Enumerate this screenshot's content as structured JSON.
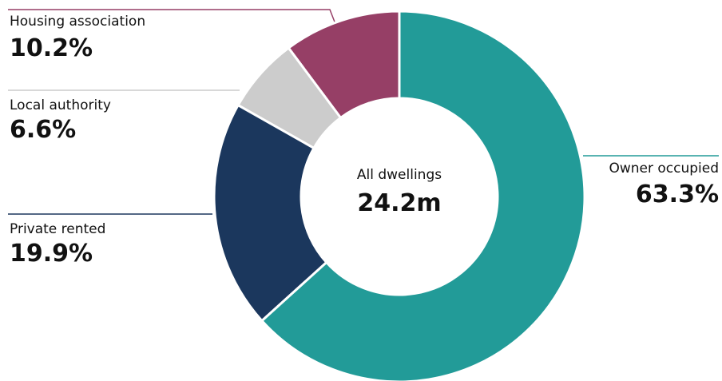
{
  "chart_data": {
    "type": "donut",
    "categories": [
      "Owner occupied",
      "Private rented",
      "Local authority",
      "Housing association"
    ],
    "values": [
      63.3,
      19.9,
      6.6,
      10.2
    ],
    "value_labels": [
      "63.3%",
      "19.9%",
      "6.6%",
      "10.2%"
    ],
    "colors": [
      "#229b98",
      "#1b375d",
      "#cccccc",
      "#963f66"
    ],
    "center_title": "All dwellings",
    "center_value": "24.2m"
  }
}
